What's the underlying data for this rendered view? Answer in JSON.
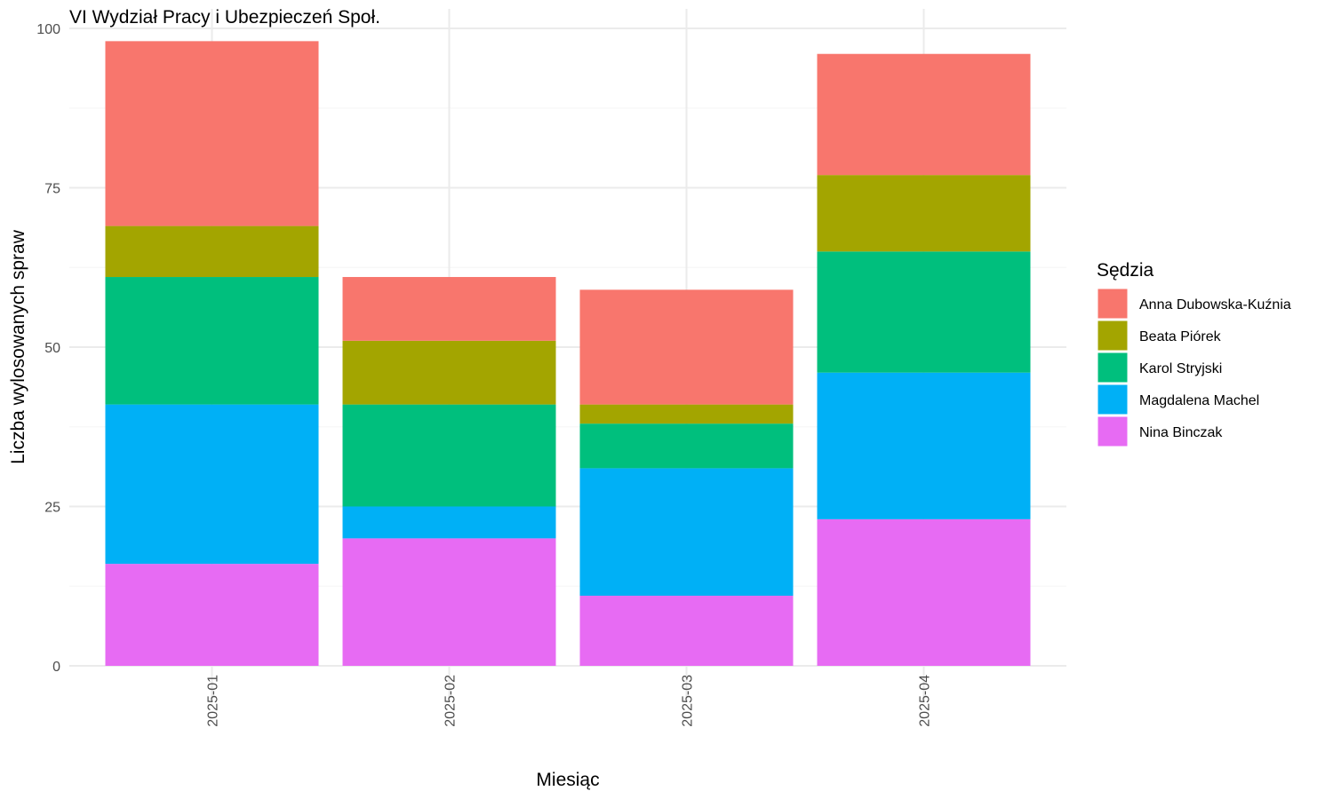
{
  "chart_data": {
    "type": "bar",
    "stacked": true,
    "title": "VI Wydział Pracy i Ubezpieczeń Społ.",
    "xlabel": "Miesiąc",
    "ylabel": "Liczba wylosowanych spraw",
    "categories": [
      "2025-01",
      "2025-02",
      "2025-03",
      "2025-04"
    ],
    "y_ticks": [
      0,
      25,
      50,
      75,
      100
    ],
    "ylim": [
      0,
      100
    ],
    "grid": true,
    "legend": {
      "title": "Sędzia",
      "position": "right"
    },
    "series": [
      {
        "name": "Nina Binczak",
        "color": "#E76BF3",
        "values": [
          16,
          20,
          11,
          23
        ]
      },
      {
        "name": "Magdalena Machel",
        "color": "#00B0F6",
        "values": [
          25,
          5,
          20,
          23
        ]
      },
      {
        "name": "Karol Stryjski",
        "color": "#00BF7D",
        "values": [
          20,
          16,
          7,
          19
        ]
      },
      {
        "name": "Beata Piórek",
        "color": "#A3A500",
        "values": [
          8,
          10,
          3,
          12
        ]
      },
      {
        "name": "Anna Dubowska-Kuźnia",
        "color": "#F8766D",
        "values": [
          29,
          10,
          18,
          19
        ]
      }
    ],
    "legend_order": [
      "Anna Dubowska-Kuźnia",
      "Beata Piórek",
      "Karol Stryjski",
      "Magdalena Machel",
      "Nina Binczak"
    ]
  }
}
